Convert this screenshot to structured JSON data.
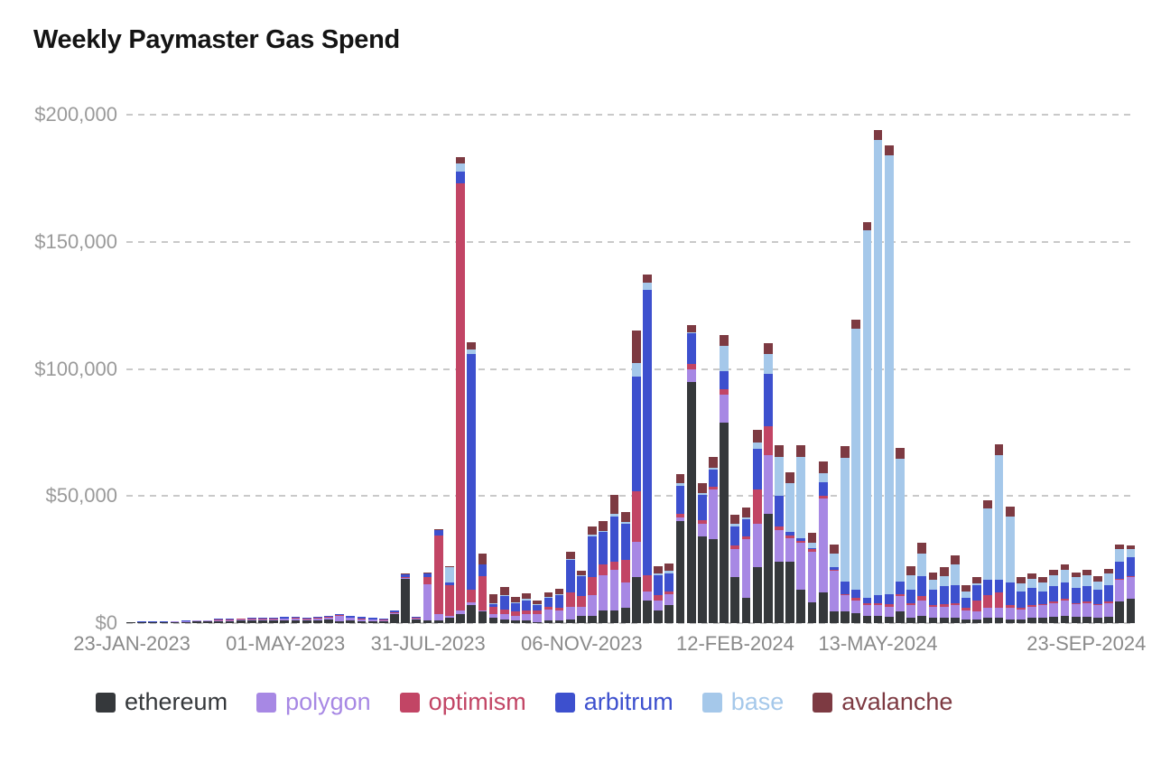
{
  "title": "Weekly Paymaster Gas Spend",
  "y_axis": {
    "labels": [
      "$0",
      "$50,000",
      "$100,000",
      "$150,000",
      "$200,000"
    ],
    "values": [
      0,
      50000,
      100000,
      150000,
      200000
    ],
    "max": 200000
  },
  "x_axis": {
    "tick_indices": [
      0,
      14,
      27,
      41,
      55,
      68,
      87
    ],
    "tick_labels": [
      "23-JAN-2023",
      "01-MAY-2023",
      "31-JUL-2023",
      "06-NOV-2023",
      "12-FEB-2024",
      "13-MAY-2024",
      "23-SEP-2024"
    ]
  },
  "legend": [
    {
      "id": "ethereum",
      "label": "ethereum",
      "color": "#35383b"
    },
    {
      "id": "polygon",
      "label": "polygon",
      "color": "#a788e4"
    },
    {
      "id": "optimism",
      "label": "optimism",
      "color": "#c24565"
    },
    {
      "id": "arbitrum",
      "label": "arbitrum",
      "color": "#3d50ce"
    },
    {
      "id": "base",
      "label": "base",
      "color": "#a5c8ea"
    },
    {
      "id": "avalanche",
      "label": "avalanche",
      "color": "#7d3a42"
    }
  ],
  "chart_data": {
    "type": "bar",
    "stacked": true,
    "title": "Weekly Paymaster Gas Spend",
    "xlabel": "",
    "ylabel": "",
    "ylim": [
      0,
      200000
    ],
    "grid": "dashed-horizontal",
    "legend_position": "bottom",
    "x": [
      "2023-01-23",
      "2023-01-30",
      "2023-02-06",
      "2023-02-13",
      "2023-02-20",
      "2023-02-27",
      "2023-03-06",
      "2023-03-13",
      "2023-03-20",
      "2023-03-27",
      "2023-04-03",
      "2023-04-10",
      "2023-04-17",
      "2023-04-24",
      "2023-05-01",
      "2023-05-08",
      "2023-05-15",
      "2023-05-22",
      "2023-05-29",
      "2023-06-05",
      "2023-06-12",
      "2023-06-19",
      "2023-06-26",
      "2023-07-03",
      "2023-07-10",
      "2023-07-17",
      "2023-07-24",
      "2023-07-31",
      "2023-08-07",
      "2023-08-14",
      "2023-08-21",
      "2023-08-28",
      "2023-09-04",
      "2023-09-11",
      "2023-09-18",
      "2023-09-25",
      "2023-10-02",
      "2023-10-09",
      "2023-10-16",
      "2023-10-23",
      "2023-10-30",
      "2023-11-06",
      "2023-11-13",
      "2023-11-20",
      "2023-11-27",
      "2023-12-04",
      "2023-12-11",
      "2023-12-18",
      "2023-12-25",
      "2024-01-01",
      "2024-01-08",
      "2024-01-15",
      "2024-01-22",
      "2024-01-29",
      "2024-02-05",
      "2024-02-12",
      "2024-02-19",
      "2024-02-26",
      "2024-03-04",
      "2024-03-11",
      "2024-03-18",
      "2024-03-25",
      "2024-04-01",
      "2024-04-08",
      "2024-04-15",
      "2024-04-22",
      "2024-04-29",
      "2024-05-06",
      "2024-05-13",
      "2024-05-20",
      "2024-05-27",
      "2024-06-03",
      "2024-06-10",
      "2024-06-17",
      "2024-06-24",
      "2024-07-01",
      "2024-07-08",
      "2024-07-15",
      "2024-07-22",
      "2024-07-29",
      "2024-08-05",
      "2024-08-12",
      "2024-08-19",
      "2024-08-26",
      "2024-09-02",
      "2024-09-09",
      "2024-09-16",
      "2024-09-23",
      "2024-09-30",
      "2024-10-07",
      "2024-10-14",
      "2024-10-21"
    ],
    "series": [
      {
        "name": "ethereum",
        "color": "#35383b",
        "values": [
          200,
          300,
          300,
          300,
          400,
          500,
          600,
          700,
          800,
          800,
          900,
          1000,
          1100,
          1000,
          1100,
          1200,
          1000,
          1200,
          1400,
          800,
          900,
          800,
          700,
          600,
          3600,
          17500,
          1500,
          1200,
          1000,
          2000,
          3500,
          7000,
          4500,
          2000,
          1500,
          1000,
          1000,
          500,
          1000,
          1000,
          1500,
          3000,
          3000,
          5000,
          5000,
          6000,
          18000,
          9000,
          5000,
          7000,
          40000,
          95000,
          34000,
          33000,
          79000,
          18000,
          10000,
          22000,
          43000,
          24000,
          24000,
          13000,
          8000,
          12000,
          4500,
          4500,
          4000,
          3000,
          3000,
          2500,
          4500,
          2000,
          3000,
          2000,
          2000,
          2000,
          1500,
          1500,
          2000,
          2000,
          1500,
          1500,
          2000,
          2000,
          2500,
          3000,
          2500,
          2500,
          2000,
          2500,
          8500,
          9500
        ]
      },
      {
        "name": "polygon",
        "color": "#a788e4",
        "values": [
          100,
          100,
          200,
          200,
          200,
          300,
          300,
          300,
          400,
          400,
          500,
          500,
          500,
          600,
          600,
          600,
          500,
          600,
          800,
          2200,
          1200,
          800,
          600,
          500,
          400,
          400,
          400,
          14000,
          2500,
          1000,
          1500,
          1000,
          500,
          1500,
          2000,
          2000,
          2500,
          3000,
          4500,
          4000,
          5000,
          3500,
          8000,
          14000,
          16000,
          10000,
          14000,
          3500,
          4000,
          4500,
          1500,
          5000,
          5000,
          19500,
          11000,
          11000,
          23000,
          17000,
          23000,
          12500,
          9500,
          18500,
          20000,
          37000,
          16000,
          6500,
          5000,
          4000,
          4000,
          4000,
          6000,
          5000,
          6000,
          4500,
          4500,
          5000,
          3500,
          3000,
          4000,
          4000,
          4500,
          4000,
          4500,
          5000,
          5500,
          6000,
          5000,
          5500,
          5000,
          5500,
          8500,
          8500
        ]
      },
      {
        "name": "optimism",
        "color": "#c24565",
        "values": [
          0,
          0,
          0,
          0,
          0,
          0,
          0,
          0,
          100,
          100,
          100,
          100,
          100,
          100,
          100,
          100,
          100,
          100,
          100,
          100,
          100,
          100,
          100,
          100,
          100,
          200,
          100,
          2800,
          31000,
          12000,
          168000,
          5000,
          13500,
          3000,
          2000,
          1500,
          1500,
          1500,
          1000,
          1000,
          5500,
          4000,
          7000,
          4000,
          3000,
          9000,
          20000,
          6500,
          2000,
          1000,
          1500,
          2000,
          1500,
          1000,
          2000,
          1500,
          1000,
          13500,
          11500,
          1500,
          1000,
          1000,
          1000,
          1000,
          500,
          500,
          1000,
          1000,
          1000,
          1000,
          1000,
          1000,
          1500,
          500,
          1000,
          1000,
          1000,
          4500,
          5000,
          6000,
          1000,
          500,
          500,
          500,
          500,
          500,
          500,
          500,
          500,
          500,
          500,
          500
        ]
      },
      {
        "name": "arbitrum",
        "color": "#3d50ce",
        "values": [
          0,
          100,
          100,
          100,
          100,
          100,
          200,
          200,
          200,
          300,
          300,
          400,
          500,
          500,
          500,
          500,
          400,
          500,
          600,
          400,
          500,
          800,
          600,
          500,
          700,
          1200,
          400,
          1600,
          2000,
          1000,
          4500,
          93000,
          4500,
          1000,
          5000,
          3500,
          4000,
          2200,
          3500,
          5000,
          13000,
          8000,
          16000,
          13000,
          18000,
          14000,
          45000,
          112000,
          8000,
          7000,
          11000,
          12000,
          10000,
          7000,
          7000,
          7500,
          7000,
          16000,
          20500,
          12000,
          1500,
          1000,
          500,
          5500,
          1000,
          5000,
          3000,
          2000,
          3000,
          4000,
          5000,
          5000,
          8000,
          6000,
          7000,
          7000,
          4000,
          6000,
          6000,
          5000,
          9000,
          6500,
          7000,
          5000,
          6000,
          6500,
          6000,
          6000,
          5500,
          6500,
          6500,
          7500
        ]
      },
      {
        "name": "base",
        "color": "#a5c8ea",
        "values": [
          0,
          0,
          0,
          0,
          0,
          0,
          0,
          0,
          0,
          0,
          0,
          0,
          0,
          0,
          0,
          0,
          0,
          0,
          0,
          0,
          0,
          0,
          0,
          0,
          0,
          0,
          0,
          0,
          0,
          6000,
          3500,
          1500,
          0,
          500,
          500,
          300,
          500,
          200,
          100,
          500,
          300,
          200,
          1000,
          200,
          1000,
          800,
          5300,
          3000,
          500,
          1000,
          1000,
          300,
          500,
          500,
          10000,
          1000,
          500,
          2500,
          8000,
          15500,
          19000,
          32000,
          2000,
          3500,
          5500,
          48500,
          102800,
          144500,
          179000,
          172500,
          48000,
          6000,
          9000,
          4000,
          4000,
          8000,
          2500,
          500,
          28000,
          49000,
          26000,
          3000,
          3500,
          3500,
          4500,
          5000,
          4000,
          4500,
          3500,
          4500,
          5000,
          3000
        ]
      },
      {
        "name": "avalanche",
        "color": "#7d3a42",
        "values": [
          0,
          0,
          0,
          0,
          0,
          0,
          0,
          0,
          0,
          0,
          0,
          0,
          0,
          0,
          0,
          0,
          0,
          0,
          0,
          0,
          0,
          0,
          0,
          0,
          0,
          100,
          0,
          200,
          300,
          300,
          2300,
          3000,
          4300,
          3500,
          3400,
          1900,
          2200,
          1500,
          2000,
          2000,
          2800,
          2000,
          3100,
          4000,
          7500,
          4000,
          12800,
          3000,
          3000,
          3000,
          3500,
          3000,
          4000,
          4500,
          4500,
          3500,
          4000,
          5000,
          4000,
          4500,
          4500,
          4500,
          4000,
          4500,
          3500,
          4500,
          3500,
          3300,
          4000,
          4000,
          4500,
          3500,
          4000,
          3000,
          3500,
          3500,
          2500,
          2500,
          3500,
          4400,
          4000,
          2500,
          2000,
          2000,
          2000,
          2000,
          2000,
          2000,
          2000,
          2000,
          2000,
          1500
        ]
      }
    ]
  }
}
